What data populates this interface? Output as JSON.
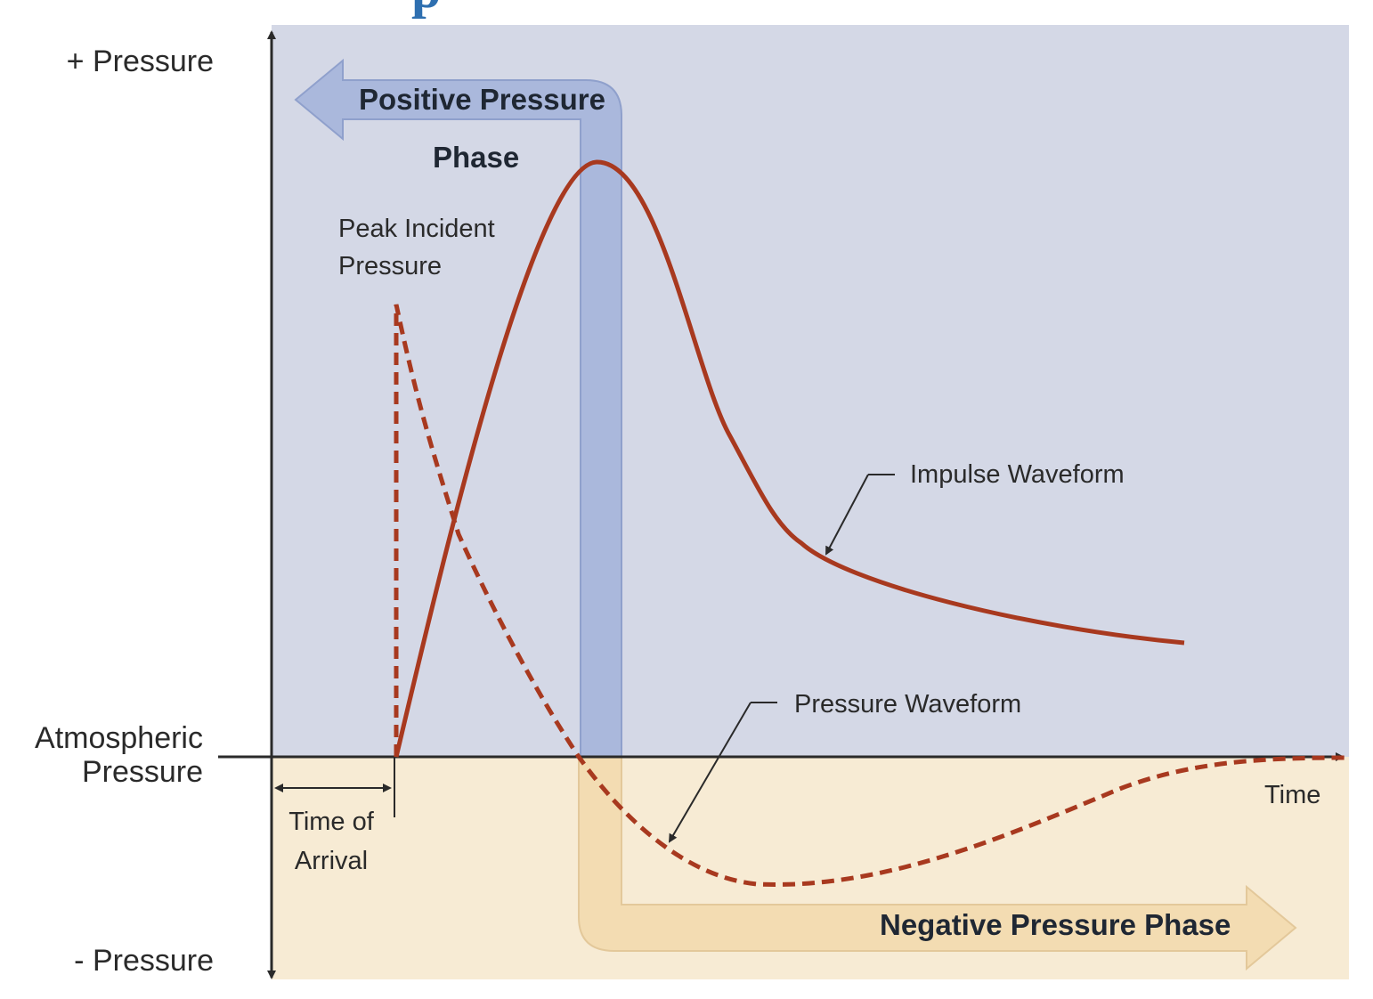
{
  "title_fragment": "p",
  "colors": {
    "positive_region": "#d4d8e6",
    "negative_region": "#f7ebd4",
    "positive_arrow": "#aab8dc",
    "negative_arrow": "#f3dcb2",
    "waveform": "#a8391f",
    "axis": "#2a2a2a",
    "title_fragment": "#2e6fb0"
  },
  "axes": {
    "y_top_label": "+ Pressure",
    "y_bottom_label": "- Pressure",
    "baseline_label_line1": "Atmospheric",
    "baseline_label_line2": "Pressure",
    "x_label": "Time"
  },
  "phases": {
    "positive_line1": "Positive Pressure",
    "positive_line2": "Phase",
    "negative": "Negative Pressure Phase"
  },
  "annotations": {
    "peak_line1": "Peak Incident",
    "peak_line2": "Pressure",
    "impulse": "Impulse Waveform",
    "pressure": "Pressure Waveform",
    "arrival_line1": "Time of",
    "arrival_line2": "Arrival"
  }
}
